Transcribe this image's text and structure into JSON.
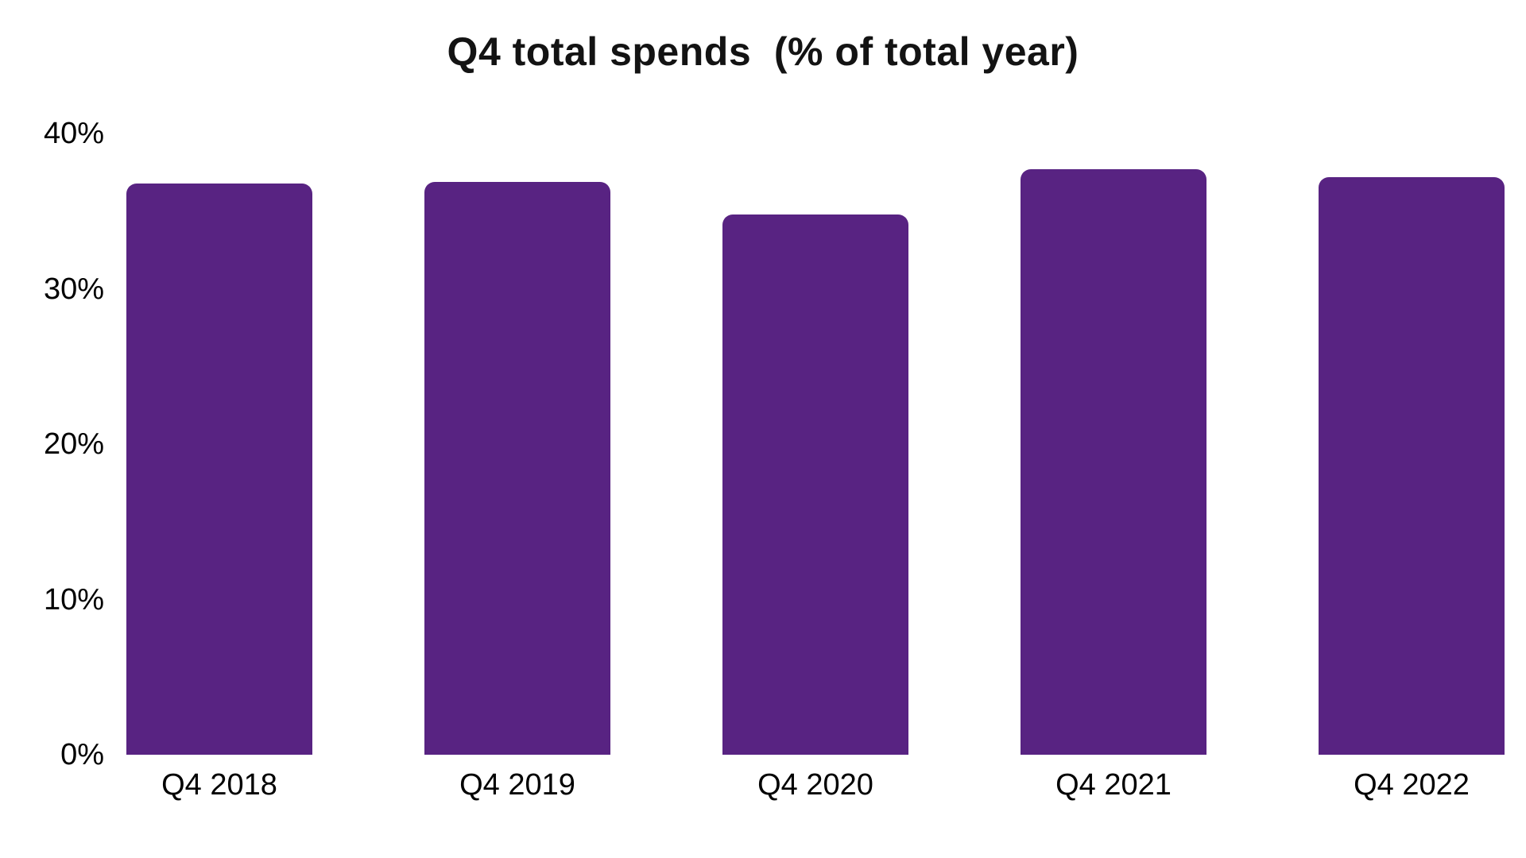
{
  "page": {
    "background_color": "#ffffff"
  },
  "chart_data": {
    "type": "bar",
    "title": "Q4 total spends  (% of total year)",
    "categories": [
      "Q4 2018",
      "Q4 2019",
      "Q4 2020",
      "Q4 2021",
      "Q4 2022"
    ],
    "values": [
      36.8,
      36.9,
      34.8,
      37.7,
      37.2
    ],
    "value_unit": "%",
    "xlabel": "",
    "ylabel": "",
    "ylim": [
      0,
      40
    ],
    "yticks": [
      {
        "label": "40%",
        "value": 40
      },
      {
        "label": "30%",
        "value": 30
      },
      {
        "label": "20%",
        "value": 20
      },
      {
        "label": "10%",
        "value": 10
      },
      {
        "label": "0%",
        "value": 0
      }
    ],
    "grid": false,
    "legend": false,
    "colors": {
      "bar": "#582382",
      "title_text": "#131313",
      "axis_text": "#000000"
    }
  }
}
